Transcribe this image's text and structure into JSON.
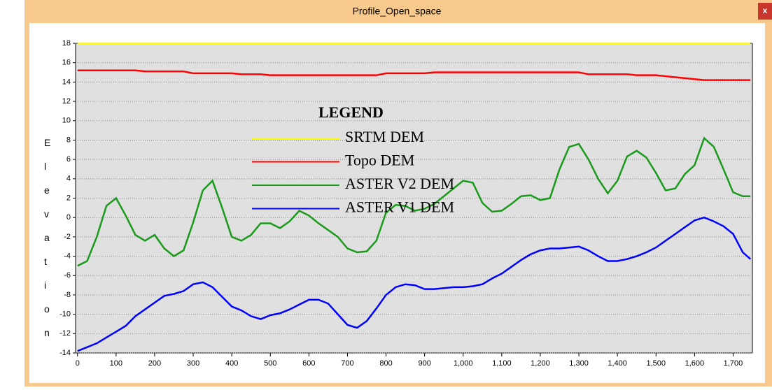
{
  "window": {
    "title": "Profile_Open_space",
    "close": "x"
  },
  "chart_data": {
    "type": "line",
    "ylabel": "Elevation",
    "x": [
      0,
      25,
      50,
      75,
      100,
      125,
      150,
      175,
      200,
      225,
      250,
      275,
      300,
      325,
      350,
      375,
      400,
      425,
      450,
      475,
      500,
      525,
      550,
      575,
      600,
      625,
      650,
      675,
      700,
      725,
      750,
      775,
      800,
      825,
      850,
      875,
      900,
      925,
      950,
      975,
      1000,
      1025,
      1050,
      1075,
      1100,
      1125,
      1150,
      1175,
      1200,
      1225,
      1250,
      1275,
      1300,
      1325,
      1350,
      1375,
      1400,
      1425,
      1450,
      1475,
      1500,
      1525,
      1550,
      1575,
      1600,
      1625,
      1650,
      1675,
      1700,
      1725,
      1745
    ],
    "xlim": [
      -5,
      1750
    ],
    "xticks": [
      0,
      100,
      200,
      300,
      400,
      500,
      600,
      700,
      800,
      900,
      {
        "value": 1000,
        "label": "1,000"
      },
      {
        "value": 1100,
        "label": "1,100"
      },
      {
        "value": 1200,
        "label": "1,200"
      },
      {
        "value": 1300,
        "label": "1,300"
      },
      {
        "value": 1400,
        "label": "1,400"
      },
      {
        "value": 1500,
        "label": "1,500"
      },
      {
        "value": 1600,
        "label": "1,600"
      },
      {
        "value": 1700,
        "label": "1,700"
      }
    ],
    "ylim": [
      -14,
      18
    ],
    "yticks": [
      -14,
      -12,
      -10,
      -8,
      -6,
      -4,
      -2,
      0,
      2,
      4,
      6,
      8,
      10,
      12,
      14,
      16,
      18
    ],
    "grid": true,
    "legend": {
      "title": "LEGEND",
      "position": "center"
    },
    "series": [
      {
        "name": "SRTM DEM",
        "color": "#ffff00",
        "values": [
          18,
          18,
          18,
          18,
          18,
          18,
          18,
          18,
          18,
          18,
          18,
          18,
          18,
          18,
          18,
          18,
          18,
          18,
          18,
          18,
          18,
          18,
          18,
          18,
          18,
          18,
          18,
          18,
          18,
          18,
          18,
          18,
          18,
          18,
          18,
          18,
          18,
          18,
          18,
          18,
          18,
          18,
          18,
          18,
          18,
          18,
          18,
          18,
          18,
          18,
          18,
          18,
          18,
          18,
          18,
          18,
          18,
          18,
          18,
          18,
          18,
          18,
          18,
          18,
          18,
          18,
          18,
          18,
          18,
          18,
          18
        ]
      },
      {
        "name": "Topo DEM",
        "color": "#ff0000",
        "values": [
          15.2,
          15.2,
          15.2,
          15.2,
          15.2,
          15.2,
          15.2,
          15.1,
          15.1,
          15.1,
          15.1,
          15.1,
          14.9,
          14.9,
          14.9,
          14.9,
          14.9,
          14.8,
          14.8,
          14.8,
          14.7,
          14.7,
          14.7,
          14.7,
          14.7,
          14.7,
          14.7,
          14.7,
          14.7,
          14.7,
          14.7,
          14.7,
          14.9,
          14.9,
          14.9,
          14.9,
          14.9,
          15,
          15,
          15,
          15,
          15,
          15,
          15,
          15,
          15,
          15,
          15,
          15,
          15,
          15,
          15,
          15,
          14.8,
          14.8,
          14.8,
          14.8,
          14.8,
          14.7,
          14.7,
          14.7,
          14.6,
          14.5,
          14.4,
          14.3,
          14.2,
          14.2,
          14.2,
          14.2,
          14.2,
          14.2
        ]
      },
      {
        "name": "ASTER V2 DEM",
        "color": "#1a9a1a",
        "values": [
          -5,
          -4.5,
          -2,
          1.2,
          2,
          0.2,
          -1.8,
          -2.4,
          -1.8,
          -3.2,
          -4,
          -3.4,
          -0.5,
          2.8,
          3.8,
          1,
          -2,
          -2.4,
          -1.8,
          -0.6,
          -0.6,
          -1.1,
          -0.4,
          0.7,
          0.2,
          -0.6,
          -1.3,
          -2,
          -3.2,
          -3.6,
          -3.5,
          -2.4,
          0.5,
          1.3,
          1.2,
          0.7,
          0.9,
          1.4,
          2.2,
          3,
          3.8,
          3.6,
          1.5,
          0.6,
          0.7,
          1.4,
          2.2,
          2.3,
          1.8,
          2,
          5,
          7.3,
          7.6,
          6,
          4,
          2.5,
          3.8,
          6.3,
          6.9,
          6.2,
          4.6,
          2.8,
          3,
          4.5,
          5.4,
          8.2,
          7.3,
          5,
          2.6,
          2.2,
          2.2
        ]
      },
      {
        "name": "ASTER V1 DEM",
        "color": "#0000ff",
        "values": [
          -13.8,
          -13.4,
          -13,
          -12.4,
          -11.8,
          -11.2,
          -10.2,
          -9.5,
          -8.8,
          -8.1,
          -7.9,
          -7.6,
          -6.9,
          -6.7,
          -7.2,
          -8.2,
          -9.2,
          -9.6,
          -10.2,
          -10.5,
          -10.1,
          -9.9,
          -9.5,
          -9,
          -8.5,
          -8.5,
          -8.9,
          -10,
          -11.1,
          -11.4,
          -10.7,
          -9.4,
          -8,
          -7.2,
          -6.9,
          -7,
          -7.4,
          -7.4,
          -7.3,
          -7.2,
          -7.2,
          -7.1,
          -6.9,
          -6.3,
          -5.8,
          -5.1,
          -4.4,
          -3.8,
          -3.4,
          -3.2,
          -3.2,
          -3.1,
          -3,
          -3.4,
          -4,
          -4.5,
          -4.5,
          -4.3,
          -4,
          -3.6,
          -3.1,
          -2.4,
          -1.7,
          -1,
          -0.3,
          0,
          -0.4,
          -0.9,
          -1.7,
          -3.6,
          -4.3
        ]
      }
    ]
  }
}
